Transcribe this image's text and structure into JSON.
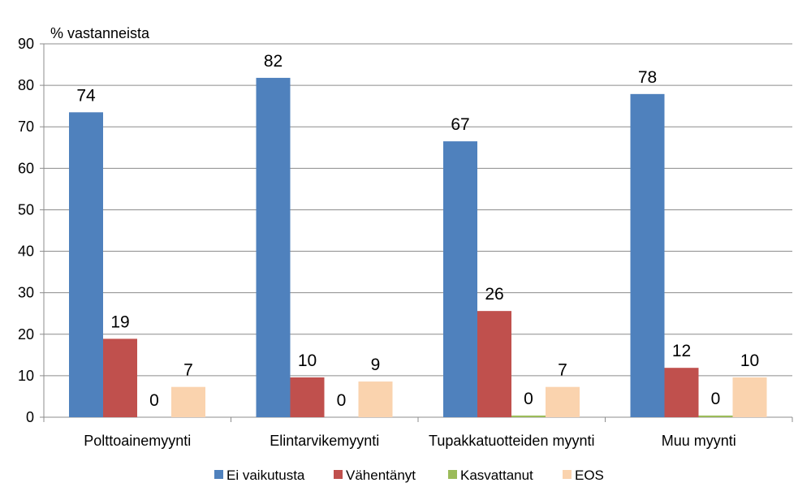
{
  "chart_data": {
    "type": "bar",
    "ylabel": "% vastanneista",
    "ylim": [
      0,
      90
    ],
    "yticks": [
      0,
      10,
      20,
      30,
      40,
      50,
      60,
      70,
      80,
      90
    ],
    "grid": true,
    "legend_position": "bottom",
    "categories": [
      "Polttoainemyynti",
      "Elintarvikemyynti",
      "Tupakkatuotteiden myynti",
      "Muu myynti"
    ],
    "series": [
      {
        "name": "Ei vaikutusta",
        "color": "#4F81BD",
        "values": [
          73.5,
          81.8,
          66.5,
          77.9
        ],
        "labels": [
          "74",
          "82",
          "67",
          "78"
        ]
      },
      {
        "name": "Vähentänyt",
        "color": "#C0504D",
        "values": [
          18.9,
          9.6,
          25.6,
          11.9
        ],
        "labels": [
          "19",
          "10",
          "26",
          "12"
        ]
      },
      {
        "name": "Kasvattanut",
        "color": "#9BBB59",
        "values": [
          0.0,
          0.0,
          0.4,
          0.4
        ],
        "labels": [
          "0",
          "0",
          "0",
          "0"
        ]
      },
      {
        "name": "EOS",
        "color": "#FAD3AE",
        "values": [
          7.3,
          8.6,
          7.3,
          9.6
        ],
        "labels": [
          "7",
          "9",
          "7",
          "10"
        ]
      }
    ]
  }
}
